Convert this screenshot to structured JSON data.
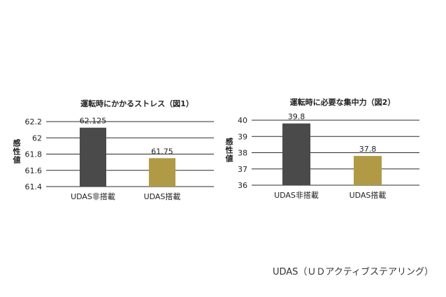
{
  "chart_data": [
    {
      "type": "bar",
      "title": "運転時にかかるストレス（図1）",
      "ylabel": "感性値",
      "categories": [
        "UDAS非搭載",
        "UDAS搭載"
      ],
      "values": [
        62.125,
        61.75
      ],
      "value_labels": [
        "62.125",
        "61.75"
      ],
      "yticks": [
        "62.2",
        "62",
        "61.8",
        "61.6",
        "61.4"
      ],
      "ylim": [
        61.4,
        62.2
      ],
      "grid": true,
      "colors": [
        "#4a4a4a",
        "#b09a45"
      ]
    },
    {
      "type": "bar",
      "title": "運転時に必要な集中力（図2）",
      "ylabel": "感性値",
      "categories": [
        "UDAS非搭載",
        "UDAS搭載"
      ],
      "values": [
        39.8,
        37.8
      ],
      "value_labels": [
        "39.8",
        "37.8"
      ],
      "yticks": [
        "40",
        "39",
        "38",
        "37",
        "36"
      ],
      "ylim": [
        36,
        40
      ],
      "grid": true,
      "colors": [
        "#4a4a4a",
        "#b09a45"
      ]
    }
  ],
  "caption": "UDAS（ＵＤアクティブステアリング）"
}
